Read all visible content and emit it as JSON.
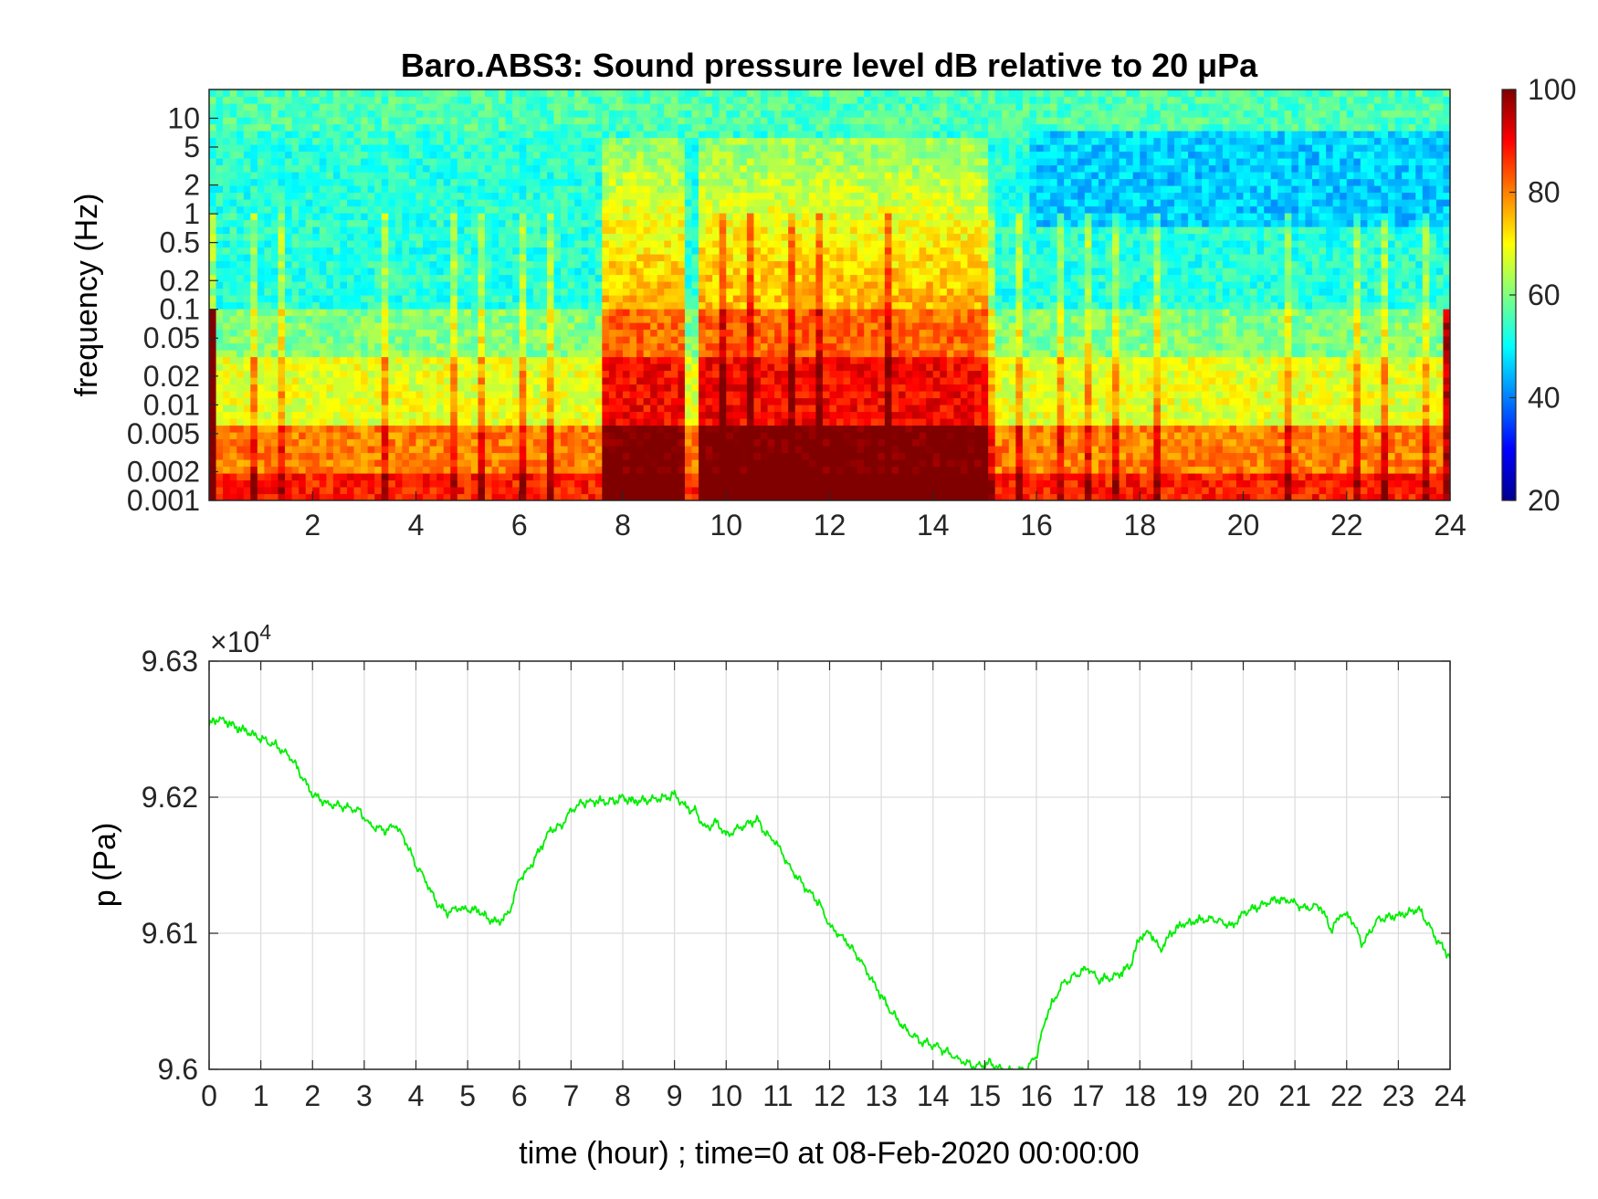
{
  "chart_data": [
    {
      "type": "heatmap",
      "title": "Baro.ABS3: Sound pressure level dB relative to 20 μPa",
      "ylabel": "frequency (Hz)",
      "xlabel": "",
      "x_ticks": [
        "2",
        "4",
        "6",
        "8",
        "10",
        "12",
        "14",
        "16",
        "18",
        "20",
        "22",
        "24"
      ],
      "y_ticks": [
        "10",
        "5",
        "2",
        "1",
        "0.5",
        "0.2",
        "0.1",
        "0.05",
        "0.02",
        "0.01",
        "0.005",
        "0.002",
        "0.001"
      ],
      "xlim": [
        0,
        24
      ],
      "ylim": [
        0.001,
        20
      ],
      "y_scale": "log",
      "colorbar": {
        "ticks": [
          "20",
          "40",
          "60",
          "80",
          "100"
        ],
        "clim": [
          20,
          100
        ],
        "colormap": "jet"
      },
      "loud_intervals_hours": [
        [
          7.6,
          9.2
        ],
        [
          9.5,
          15.0
        ]
      ],
      "quiet_high_band_interval_hours": [
        15.9,
        24.0
      ]
    },
    {
      "type": "line",
      "ylabel": "p (Pa)",
      "xlabel": "time (hour) ; time=0 at 08-Feb-2020 00:00:00",
      "exponent_label": "×10",
      "exponent_power": "4",
      "x_ticks": [
        "0",
        "1",
        "2",
        "3",
        "4",
        "5",
        "6",
        "7",
        "8",
        "9",
        "10",
        "11",
        "12",
        "13",
        "14",
        "15",
        "16",
        "17",
        "18",
        "19",
        "20",
        "21",
        "22",
        "23",
        "24"
      ],
      "y_ticks": [
        "9.63",
        "9.62",
        "9.61",
        "9.6"
      ],
      "xlim": [
        0,
        24
      ],
      "ylim": [
        96000,
        96300
      ],
      "grid": true,
      "series": [
        {
          "color": "#00ee00",
          "x": [
            0,
            0.2,
            0.5,
            0.8,
            1.0,
            1.3,
            1.6,
            2.0,
            2.3,
            2.6,
            2.9,
            3.1,
            3.4,
            3.6,
            3.8,
            4.0,
            4.2,
            4.4,
            4.6,
            4.8,
            5.0,
            5.2,
            5.4,
            5.6,
            5.8,
            6.0,
            6.2,
            6.4,
            6.6,
            6.8,
            7.0,
            7.2,
            7.5,
            7.8,
            8.0,
            8.2,
            8.5,
            8.8,
            9.0,
            9.2,
            9.4,
            9.6,
            9.8,
            10.0,
            10.2,
            10.4,
            10.6,
            10.8,
            11.0,
            11.2,
            11.5,
            11.8,
            12.0,
            12.3,
            12.6,
            12.9,
            13.2,
            13.5,
            13.8,
            14.0,
            14.3,
            14.6,
            14.9,
            15.1,
            15.3,
            15.6,
            15.8,
            16.0,
            16.2,
            16.5,
            16.8,
            17.0,
            17.2,
            17.5,
            17.8,
            18.0,
            18.2,
            18.4,
            18.6,
            18.8,
            19.0,
            19.2,
            19.5,
            19.8,
            20.0,
            20.3,
            20.6,
            20.9,
            21.2,
            21.5,
            21.7,
            21.9,
            22.1,
            22.3,
            22.6,
            22.9,
            23.2,
            23.4,
            23.6,
            23.8,
            24.0
          ],
          "y": [
            96253,
            96258,
            96252,
            96247,
            96243,
            96238,
            96228,
            96202,
            96195,
            96193,
            96190,
            96180,
            96175,
            96180,
            96168,
            96150,
            96138,
            96122,
            96115,
            96118,
            96118,
            96117,
            96110,
            96108,
            96115,
            96140,
            96148,
            96162,
            96176,
            96178,
            96190,
            96196,
            96197,
            96197,
            96200,
            96197,
            96198,
            96200,
            96202,
            96193,
            96190,
            96176,
            96182,
            96172,
            96176,
            96180,
            96183,
            96172,
            96165,
            96150,
            96135,
            96122,
            96105,
            96095,
            96080,
            96060,
            96042,
            96028,
            96020,
            96018,
            96012,
            96005,
            96002,
            96005,
            96000,
            95998,
            96000,
            96010,
            96040,
            96063,
            96070,
            96075,
            96066,
            96068,
            96075,
            96097,
            96101,
            96088,
            96100,
            96106,
            96108,
            96110,
            96110,
            96105,
            96115,
            96120,
            96125,
            96124,
            96118,
            96120,
            96102,
            96115,
            96110,
            96092,
            96110,
            96112,
            96115,
            96118,
            96105,
            96092,
            96082
          ]
        }
      ]
    }
  ]
}
